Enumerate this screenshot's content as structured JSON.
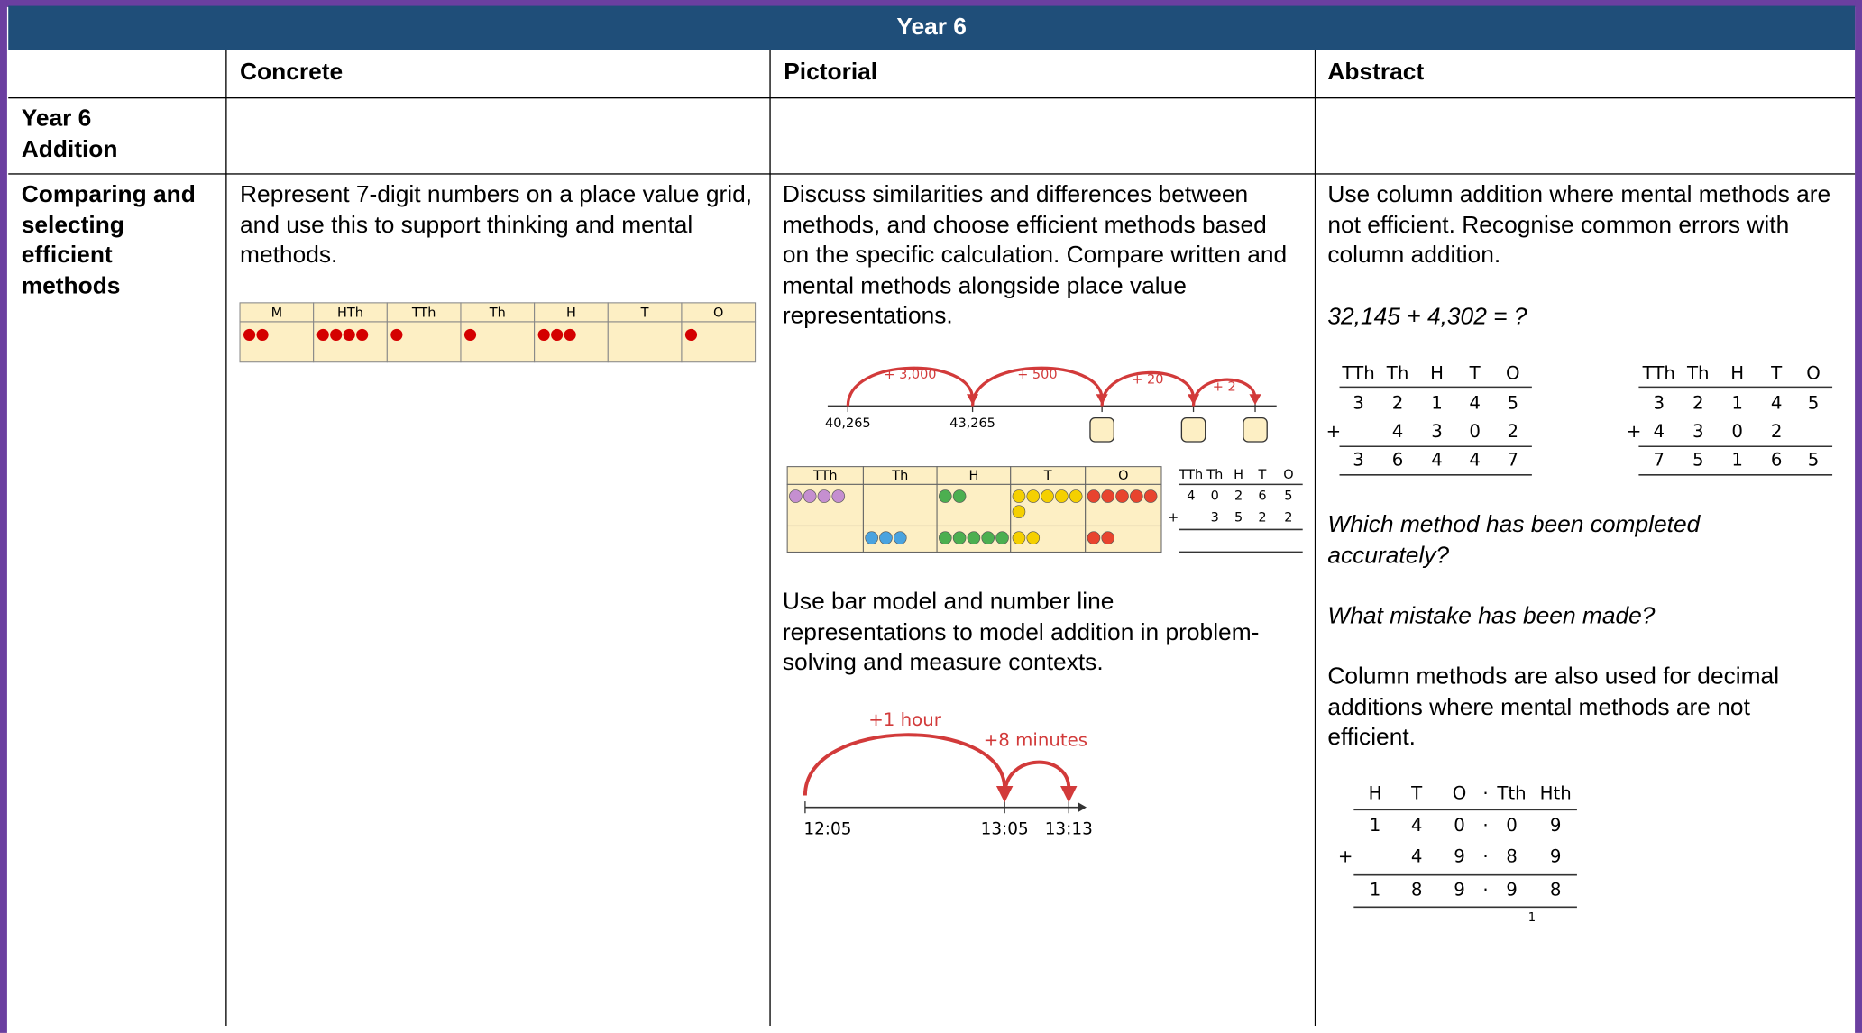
{
  "header": {
    "title": "Year 6"
  },
  "table": {
    "columns": [
      "Concrete",
      "Pictorial",
      "Abstract"
    ],
    "rows": [
      {
        "label": "Year 6 Addition"
      },
      {
        "label": "Comparing and selecting efficient methods",
        "concrete": {
          "text": "Represent 7-digit numbers on a place value grid, and use this to support thinking and mental methods.",
          "place_value_grid": {
            "headers": [
              "M",
              "HTh",
              "TTh",
              "Th",
              "H",
              "T",
              "O"
            ],
            "counters": [
              2,
              4,
              1,
              1,
              3,
              0,
              1
            ]
          }
        },
        "pictorial": {
          "text": "Discuss similarities and differences between methods, and choose efficient methods based on the specific calculation. Compare written and mental methods alongside place value representations.",
          "number_line": {
            "labels": [
              "40,265",
              "43,265"
            ],
            "jumps": [
              "+ 3,000",
              "+ 500",
              "+ 20",
              "+ 2"
            ]
          },
          "place_value_table": {
            "headers": [
              "TTh",
              "Th",
              "H",
              "T",
              "O"
            ],
            "counters": [
              [
                4,
                0,
                2,
                6,
                5
              ],
              [
                0,
                3,
                5,
                2,
                2
              ]
            ]
          },
          "column_addition": {
            "headers": [
              "TTh",
              "Th",
              "H",
              "T",
              "O"
            ],
            "operator": "+",
            "rows": [
              [
                "4",
                "0",
                "2",
                "6",
                "5"
              ],
              [
                null,
                "3",
                "5",
                "2",
                "2"
              ]
            ]
          },
          "text_2": "Use bar model and number line representations to model addition in problem-solving and measure contexts.",
          "time_line": {
            "labels": [
              "12:05",
              "13:05",
              "13:13"
            ],
            "jumps": [
              "+1 hour",
              "+8 minutes"
            ]
          }
        },
        "abstract": {
          "text": "Use column addition where mental methods are not efficient. Recognise common errors with column addition.",
          "equation": "32,145 + 4,302 = ?",
          "methods": [
            {
              "headers": [
                "TTh",
                "Th",
                "H",
                "T",
                "O"
              ],
              "operator": "+",
              "rows": [
                [
                  "3",
                  "2",
                  "1",
                  "4",
                  "5"
                ],
                [
                  null,
                  "4",
                  "3",
                  "0",
                  "2"
                ],
                [
                  "3",
                  "6",
                  "4",
                  "4",
                  "7"
                ]
              ]
            },
            {
              "headers": [
                "TTh",
                "Th",
                "H",
                "T",
                "O"
              ],
              "operator": "+",
              "rows": [
                [
                  "3",
                  "2",
                  "1",
                  "4",
                  "5"
                ],
                [
                  "4",
                  "3",
                  "0",
                  "2",
                  null
                ],
                [
                  "7",
                  "5",
                  "1",
                  "6",
                  "5"
                ]
              ]
            }
          ],
          "question_1": "Which method has been completed accurately?",
          "question_2": "What mistake has been made?",
          "text_2": "Column methods are also used for decimal additions where mental methods are not efficient.",
          "decimal_addition": {
            "headers": [
              "H",
              "T",
              "O",
              "Tth",
              "Hth"
            ],
            "point": "·",
            "operator": "+",
            "rows": [
              [
                "1",
                "4",
                "0",
                "0",
                "9"
              ],
              [
                null,
                "4",
                "9",
                "8",
                "9"
              ],
              [
                "1",
                "8",
                "9",
                "9",
                "8"
              ]
            ],
            "carry": "1"
          }
        }
      }
    ]
  }
}
